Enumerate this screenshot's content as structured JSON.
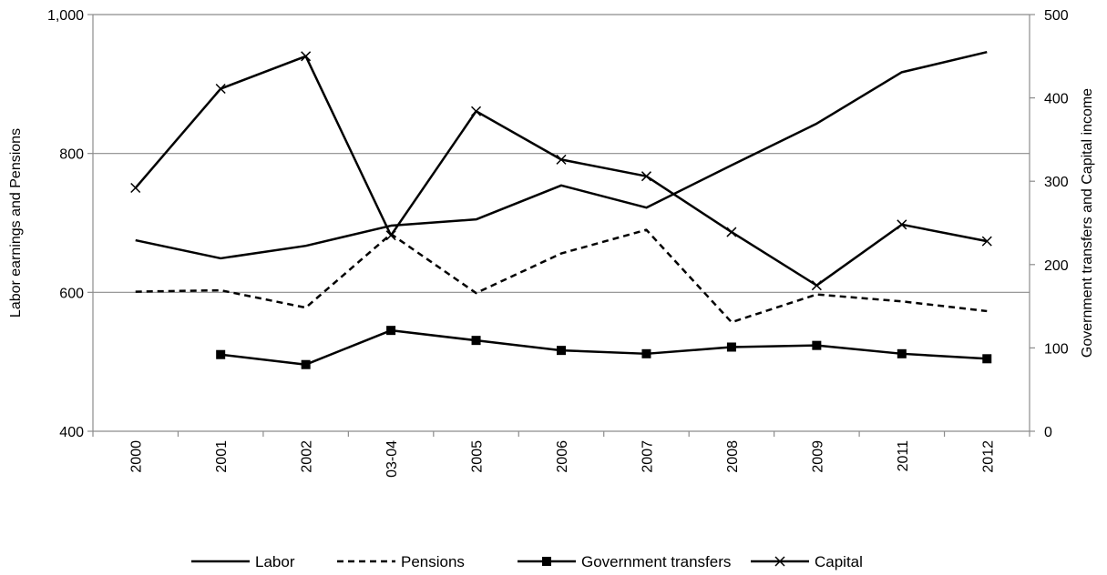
{
  "chart_data": {
    "type": "line",
    "categories": [
      "2000",
      "2001",
      "2002",
      "03-04",
      "2005",
      "2006",
      "2007",
      "2008",
      "2009",
      "2011",
      "2012"
    ],
    "y_left": {
      "label": "Labor earnings and Pensions",
      "range": [
        400,
        1000
      ],
      "ticks": [
        400,
        600,
        800,
        1000
      ],
      "tick_labels": [
        "400",
        "600",
        "800",
        "1,000"
      ]
    },
    "y_right": {
      "label": "Government transfers and Capital income",
      "range": [
        0,
        500
      ],
      "ticks": [
        0,
        100,
        200,
        300,
        400,
        500
      ],
      "tick_labels": [
        "0",
        "100",
        "200",
        "300",
        "400",
        "500"
      ]
    },
    "gridlines": "horizontal, at left-axis ticks",
    "legend_position": "bottom",
    "series": [
      {
        "name": "Labor",
        "axis": "left",
        "style": "solid",
        "marker": "none",
        "values": [
          675,
          649,
          667,
          696,
          705,
          754,
          722,
          783,
          843,
          917,
          946
        ]
      },
      {
        "name": "Pensions",
        "axis": "left",
        "style": "dashed",
        "marker": "none",
        "values": [
          601,
          603,
          578,
          684,
          599,
          656,
          690,
          557,
          597,
          587,
          573
        ]
      },
      {
        "name": "Government transfers",
        "axis": "right",
        "style": "solid",
        "marker": "square",
        "values": [
          null,
          92,
          80,
          121,
          109,
          97,
          93,
          101,
          103,
          93,
          87
        ]
      },
      {
        "name": "Capital",
        "axis": "right",
        "style": "solid",
        "marker": "x",
        "values": [
          292,
          411,
          450,
          235,
          384,
          326,
          306,
          239,
          175,
          248,
          228
        ]
      }
    ]
  }
}
